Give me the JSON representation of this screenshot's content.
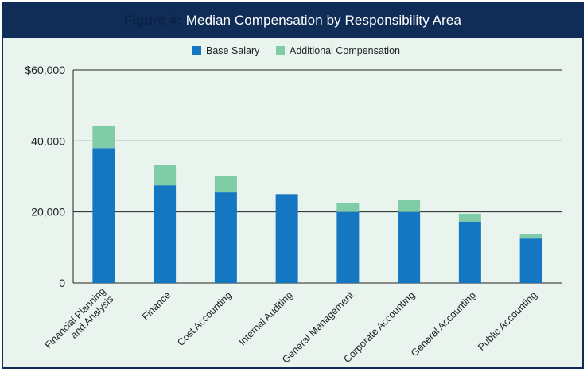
{
  "header": {
    "figure_label": "Figure 4:",
    "title": "Median Compensation by Responsibility Area"
  },
  "colors": {
    "base": "#1577c2",
    "additional": "#7fcca6",
    "header_bg": "#0f2d57",
    "plot_bg": "#eaf4ee"
  },
  "chart_data": {
    "type": "bar",
    "stacked": true,
    "title": "Median Compensation by Responsibility Area",
    "xlabel": "",
    "ylabel": "",
    "ylim": [
      0,
      60000
    ],
    "yticks": [
      0,
      20000,
      40000,
      60000
    ],
    "ytick_labels": [
      "0",
      "20,000",
      "40,000",
      "$60,000"
    ],
    "legend_position": "top-center",
    "categories": [
      "Financial Planning and Analysis",
      "Finance",
      "Cost Accounting",
      "Internal Auditing",
      "General Management",
      "Corporate Accounting",
      "General Accounting",
      "Public Accounting"
    ],
    "series": [
      {
        "name": "Base Salary",
        "color": "#1577c2",
        "values": [
          38000,
          27500,
          25500,
          25000,
          20000,
          20000,
          17300,
          12500
        ]
      },
      {
        "name": "Additional Compensation",
        "color": "#7fcca6",
        "values": [
          6300,
          5800,
          4500,
          0,
          2500,
          3300,
          2200,
          1200
        ]
      }
    ]
  }
}
